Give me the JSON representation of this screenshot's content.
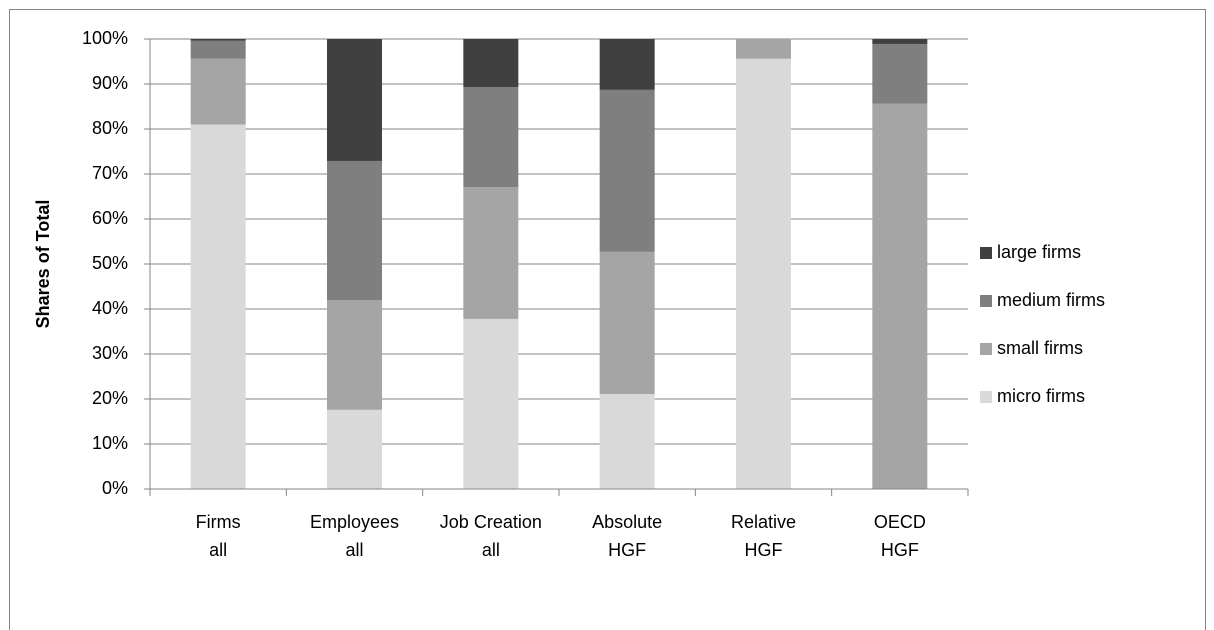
{
  "chart_data": {
    "type": "stacked-bar",
    "y_label": "Shares of Total",
    "categories": [
      [
        "Firms",
        "all"
      ],
      [
        "Employees",
        "all"
      ],
      [
        "Job Creation",
        "all"
      ],
      [
        "Absolute",
        "HGF"
      ],
      [
        "Relative",
        "HGF"
      ],
      [
        "OECD",
        "HGF"
      ]
    ],
    "series": [
      {
        "name": "micro firms",
        "color": "#d9d9d9",
        "values": [
          81,
          17.6,
          37.8,
          21.1,
          95.6,
          0
        ]
      },
      {
        "name": "small firms",
        "color": "#a5a5a5",
        "values": [
          14.6,
          24.4,
          29.3,
          31.6,
          4.4,
          85.6
        ]
      },
      {
        "name": "medium firms",
        "color": "#7f7f7f",
        "values": [
          4,
          30.9,
          22.2,
          36,
          0,
          13.3
        ]
      },
      {
        "name": "large firms",
        "color": "#404040",
        "values": [
          0.4,
          27.1,
          10.7,
          11.3,
          0,
          1.1
        ]
      }
    ],
    "ylim": [
      0,
      100
    ],
    "yticks": [
      {
        "value": 0,
        "label": "0%"
      },
      {
        "value": 10,
        "label": "10%"
      },
      {
        "value": 20,
        "label": "20%"
      },
      {
        "value": 30,
        "label": "30%"
      },
      {
        "value": 40,
        "label": "40%"
      },
      {
        "value": 50,
        "label": "50%"
      },
      {
        "value": 60,
        "label": "60%"
      },
      {
        "value": 70,
        "label": "70%"
      },
      {
        "value": 80,
        "label": "80%"
      },
      {
        "value": 90,
        "label": "90%"
      },
      {
        "value": 100,
        "label": "100%"
      }
    ],
    "grid": true,
    "legend": "right"
  }
}
